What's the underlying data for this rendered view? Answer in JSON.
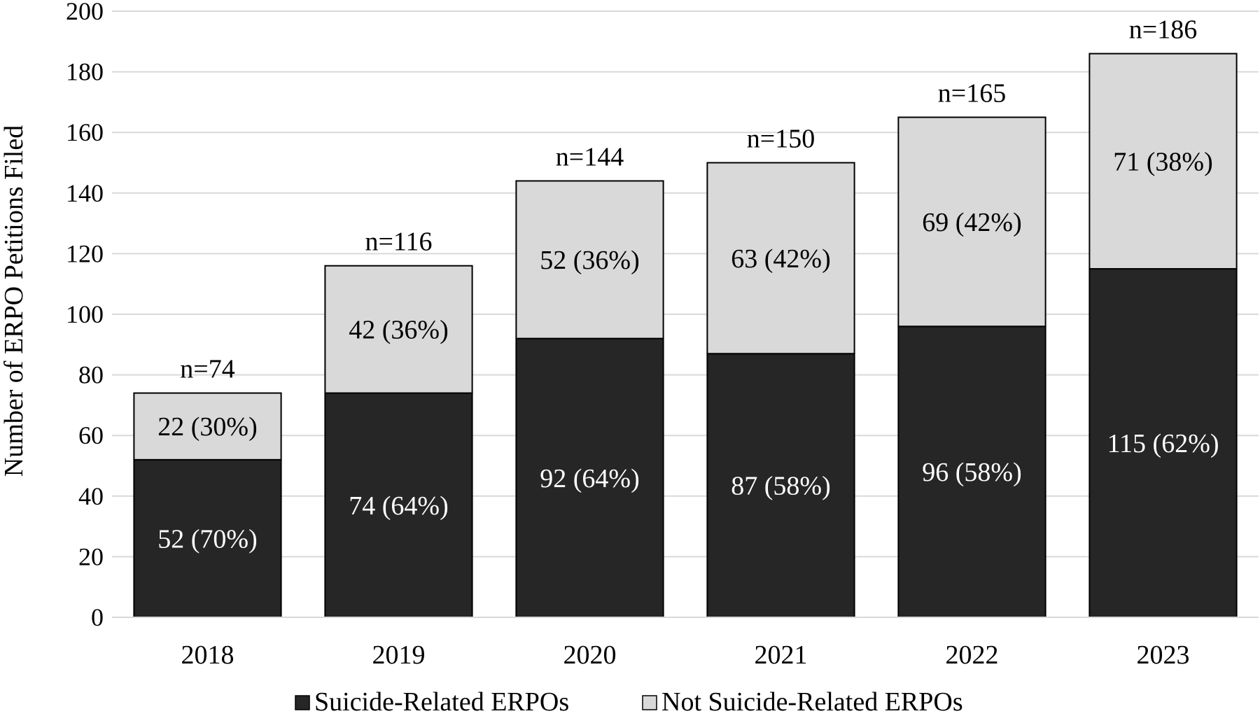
{
  "chart_data": {
    "type": "bar",
    "stacked": true,
    "title": "",
    "xlabel": "",
    "ylabel": "Number of ERPO Petitions Filed",
    "ylim": [
      0,
      200
    ],
    "yticks": [
      0,
      20,
      40,
      60,
      80,
      100,
      120,
      140,
      160,
      180,
      200
    ],
    "grid": true,
    "legend_position": "bottom",
    "categories": [
      "2018",
      "2019",
      "2020",
      "2021",
      "2022",
      "2023"
    ],
    "series": [
      {
        "name": "Suicide-Related ERPOs",
        "color": "#262626",
        "values": [
          52,
          74,
          92,
          87,
          96,
          115
        ],
        "labels": [
          "52 (70%)",
          "74 (64%)",
          "92 (64%)",
          "87 (58%)",
          "96 (58%)",
          "115 (62%)"
        ]
      },
      {
        "name": "Not Suicide-Related ERPOs",
        "color": "#d9d9d9",
        "values": [
          22,
          42,
          52,
          63,
          69,
          71
        ],
        "labels": [
          "22 (30%)",
          "42 (36%)",
          "52 (36%)",
          "63 (42%)",
          "69 (42%)",
          "71 (38%)"
        ]
      }
    ],
    "totals": [
      "n=74",
      "n=116",
      "n=144",
      "n=150",
      "n=165",
      "n=186"
    ]
  }
}
